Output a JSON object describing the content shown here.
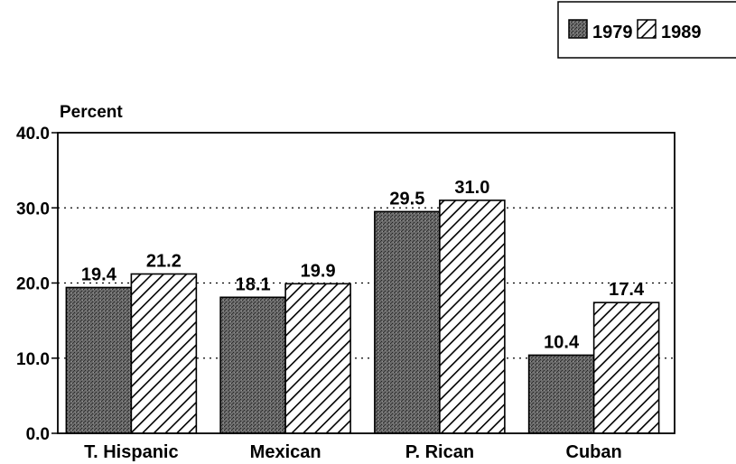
{
  "chart_data": {
    "type": "bar",
    "ylabel": "Percent",
    "ylim": [
      0,
      40
    ],
    "yticks": [
      "0.0",
      "10.0",
      "20.0",
      "30.0",
      "40.0"
    ],
    "grid": "horizontal dotted",
    "legend_position": "top-right",
    "categories": [
      "T. Hispanic",
      "Mexican",
      "P. Rican",
      "Cuban"
    ],
    "series": [
      {
        "name": "1979",
        "values": [
          19.4,
          18.1,
          29.5,
          10.4
        ],
        "labels": [
          "19.4",
          "18.1",
          "29.5",
          "10.4"
        ],
        "fill": "dark stipple",
        "color": "#5a5a5a"
      },
      {
        "name": "1989",
        "values": [
          21.2,
          19.9,
          31.0,
          17.4
        ],
        "labels": [
          "21.2",
          "19.9",
          "31.0",
          "17.4"
        ],
        "fill": "diagonal hatch",
        "color": "#000000"
      }
    ]
  }
}
